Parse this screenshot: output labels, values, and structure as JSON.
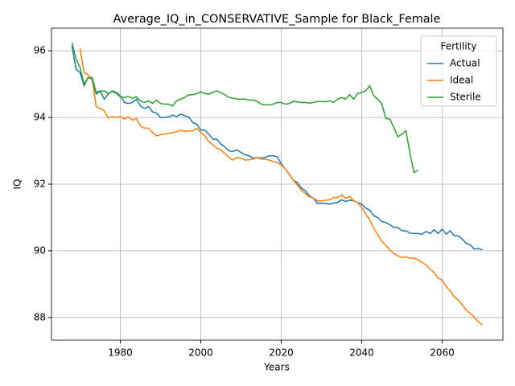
{
  "chart_data": {
    "type": "line",
    "title": "Average_IQ_in_CONSERVATIVE_Sample for Black_Female",
    "x_label": "Years",
    "y_label": "IQ",
    "x": [
      1968,
      1969,
      1970,
      1971,
      1972,
      1973,
      1974,
      1975,
      1976,
      1977,
      1978,
      1979,
      1980,
      1981,
      1982,
      1983,
      1984,
      1985,
      1986,
      1987,
      1988,
      1989,
      1990,
      1991,
      1992,
      1993,
      1994,
      1995,
      1996,
      1997,
      1998,
      1999,
      2000,
      2001,
      2002,
      2003,
      2004,
      2005,
      2006,
      2007,
      2008,
      2009,
      2010,
      2011,
      2012,
      2013,
      2014,
      2015,
      2016,
      2017,
      2018,
      2019,
      2020,
      2021,
      2022,
      2023,
      2024,
      2025,
      2026,
      2027,
      2028,
      2029,
      2030,
      2031,
      2032,
      2033,
      2034,
      2035,
      2036,
      2037,
      2038,
      2039,
      2040,
      2041,
      2042,
      2043,
      2044,
      2045,
      2046,
      2047,
      2048,
      2049,
      2050,
      2051,
      2052,
      2053,
      2054,
      2055,
      2056,
      2057,
      2058,
      2059,
      2060,
      2061,
      2062,
      2063,
      2064,
      2065,
      2066,
      2067,
      2068,
      2069,
      2070
    ],
    "series": [
      {
        "name": "Actual",
        "color": "#1f77b4",
        "values": [
          96.15,
          95.45,
          95.35,
          94.95,
          95.2,
          95.2,
          94.75,
          94.8,
          94.55,
          94.7,
          94.8,
          94.75,
          94.65,
          94.45,
          94.42,
          94.45,
          94.55,
          94.35,
          94.27,
          94.33,
          94.17,
          94.13,
          94.0,
          94.0,
          94.02,
          94.07,
          94.03,
          94.1,
          94.05,
          94.02,
          93.85,
          93.8,
          93.62,
          93.62,
          93.5,
          93.35,
          93.35,
          93.2,
          93.12,
          93.0,
          92.98,
          93.03,
          92.95,
          92.88,
          92.85,
          92.78,
          92.8,
          92.78,
          92.8,
          92.85,
          92.85,
          92.82,
          92.62,
          92.45,
          92.3,
          92.12,
          92.05,
          91.88,
          91.8,
          91.65,
          91.58,
          91.42,
          91.43,
          91.42,
          91.4,
          91.43,
          91.45,
          91.53,
          91.48,
          91.52,
          91.5,
          91.45,
          91.4,
          91.28,
          91.22,
          91.05,
          91.0,
          90.88,
          90.85,
          90.78,
          90.7,
          90.7,
          90.6,
          90.6,
          90.53,
          90.52,
          90.52,
          90.5,
          90.58,
          90.52,
          90.63,
          90.52,
          90.65,
          90.5,
          90.6,
          90.45,
          90.45,
          90.35,
          90.22,
          90.18,
          90.05,
          90.07,
          90.03
        ]
      },
      {
        "name": "Ideal",
        "color": "#ff7f0e",
        "values": [
          null,
          null,
          96.07,
          95.35,
          95.28,
          95.15,
          94.33,
          94.27,
          94.2,
          93.98,
          94.03,
          94.0,
          94.03,
          93.95,
          94.02,
          93.92,
          93.97,
          93.75,
          93.68,
          93.68,
          93.55,
          93.45,
          93.48,
          93.5,
          93.52,
          93.55,
          93.57,
          93.62,
          93.58,
          93.6,
          93.6,
          93.67,
          93.55,
          93.45,
          93.28,
          93.18,
          93.08,
          93.02,
          92.92,
          92.8,
          92.72,
          92.8,
          92.78,
          92.72,
          92.73,
          92.75,
          92.8,
          92.75,
          92.75,
          92.72,
          92.68,
          92.65,
          92.58,
          92.45,
          92.3,
          92.12,
          91.98,
          91.82,
          91.72,
          91.62,
          91.58,
          91.5,
          91.5,
          91.52,
          91.53,
          91.6,
          91.6,
          91.68,
          91.57,
          91.63,
          91.5,
          91.45,
          91.3,
          91.1,
          90.93,
          90.68,
          90.48,
          90.28,
          90.17,
          90.03,
          89.92,
          89.85,
          89.8,
          89.82,
          89.78,
          89.78,
          89.73,
          89.65,
          89.58,
          89.45,
          89.35,
          89.18,
          89.12,
          88.92,
          88.8,
          88.62,
          88.52,
          88.38,
          88.22,
          88.12,
          88.0,
          87.87,
          87.78
        ]
      },
      {
        "name": "Sterile",
        "color": "#2ca02c",
        "values": [
          96.25,
          95.75,
          95.5,
          95.0,
          95.2,
          95.15,
          94.7,
          94.78,
          94.8,
          94.72,
          94.78,
          94.72,
          94.62,
          94.6,
          94.63,
          94.58,
          94.62,
          94.5,
          94.45,
          94.5,
          94.42,
          94.52,
          94.42,
          94.4,
          94.4,
          94.35,
          94.5,
          94.55,
          94.6,
          94.68,
          94.68,
          94.72,
          94.77,
          94.72,
          94.7,
          94.75,
          94.8,
          94.75,
          94.68,
          94.6,
          94.58,
          94.55,
          94.55,
          94.55,
          94.52,
          94.53,
          94.48,
          94.4,
          94.38,
          94.38,
          94.4,
          94.45,
          94.45,
          94.4,
          94.42,
          94.48,
          94.47,
          94.45,
          94.45,
          94.43,
          94.45,
          94.48,
          94.48,
          94.47,
          94.5,
          94.45,
          94.55,
          94.6,
          94.55,
          94.68,
          94.55,
          94.72,
          94.75,
          94.8,
          94.95,
          94.65,
          94.55,
          94.4,
          93.97,
          93.95,
          93.7,
          93.42,
          93.5,
          93.6,
          92.92,
          92.35,
          92.42,
          null,
          null,
          null,
          null,
          null,
          null,
          null,
          null,
          null,
          null,
          null,
          null,
          null,
          null,
          null,
          null
        ]
      }
    ],
    "xlim": [
      1962.9,
      2075.1
    ],
    "xticks": [
      1980,
      2000,
      2020,
      2040,
      2060
    ],
    "ylim": [
      87.32,
      96.68
    ],
    "yticks": [
      88,
      90,
      92,
      94,
      96
    ],
    "grid": true,
    "legend_title": "Fertility",
    "legend_position": "upper right"
  }
}
